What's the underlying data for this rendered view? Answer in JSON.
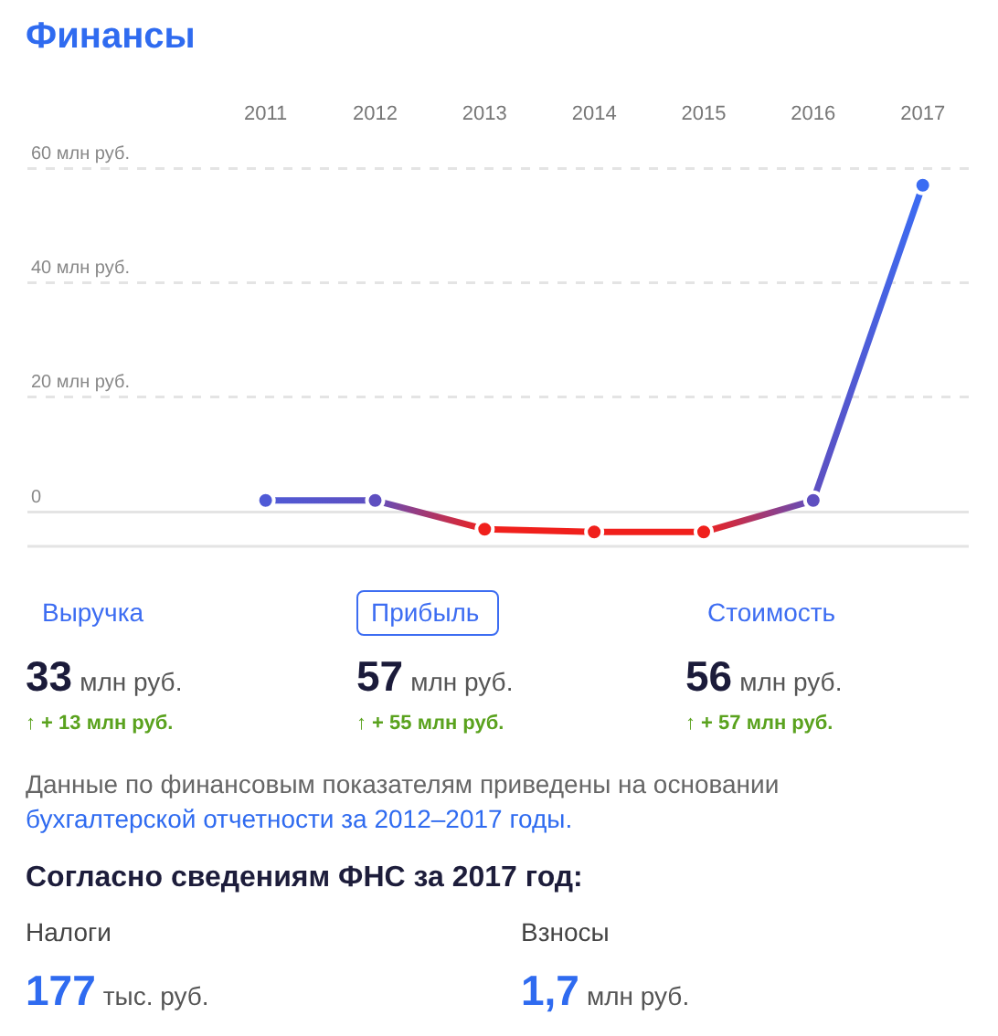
{
  "chart_data": {
    "type": "line",
    "title": "Финансы",
    "categories": [
      "2011",
      "2012",
      "2013",
      "2014",
      "2015",
      "2016",
      "2017"
    ],
    "values": [
      2,
      2,
      -3,
      -3.5,
      -3.5,
      2,
      57
    ],
    "colors": [
      "#4f5ad6",
      "#5e4fc0",
      "#f0201c",
      "#f0201c",
      "#f0201c",
      "#5e4fc0",
      "#3b6cf3"
    ],
    "ylim": [
      -6,
      60
    ],
    "yticks": [
      {
        "value": 0,
        "label": "0"
      },
      {
        "value": 20,
        "label": "20 млн руб."
      },
      {
        "value": 40,
        "label": "40 млн руб."
      },
      {
        "value": 60,
        "label": "60 млн руб."
      }
    ],
    "grid": "y",
    "marker": "circle",
    "line_style": "solid",
    "annotations": [
      "Выручка",
      "33 млн руб.",
      "↑ + 13 млн руб.",
      "Прибыль",
      "57 млн руб.",
      "↑ + 55 млн руб.",
      "Стоимость",
      "56 млн руб.",
      "↑ + 57 млн руб.",
      "Данные по финансовым показателям приведены на основании",
      "бухгалтерской отчетности за 2012–2017 годы.",
      "Согласно сведениям ФНС за 2017 год:",
      "Налоги",
      "177 тыс. руб.",
      "Взносы",
      "1,7 млн руб."
    ]
  }
}
